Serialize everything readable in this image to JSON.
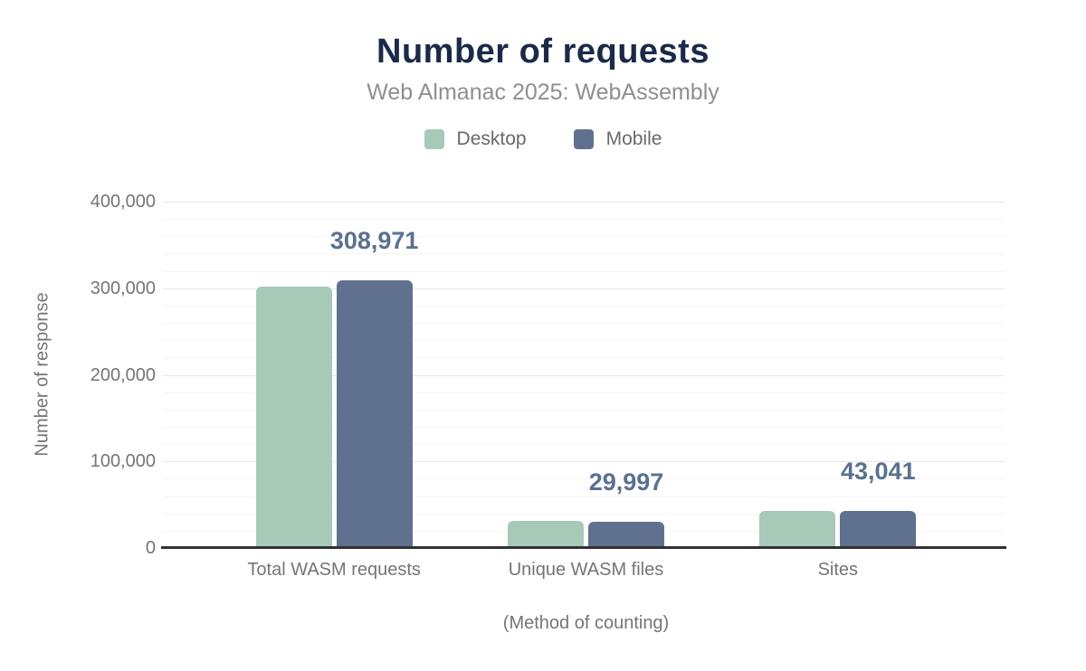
{
  "chart": {
    "title": "Number of requests",
    "subtitle": "Web Almanac 2025: WebAssembly"
  },
  "chart_data": {
    "type": "bar",
    "title": "Number of requests",
    "subtitle": "Web Almanac 2025: WebAssembly",
    "categories": [
      "Total WASM requests",
      "Unique WASM files",
      "Sites"
    ],
    "series": [
      {
        "name": "Desktop",
        "color": "#a7c9b8",
        "values": [
          302000,
          31000,
          43000
        ],
        "data_labels": [
          "",
          "",
          ""
        ]
      },
      {
        "name": "Mobile",
        "color": "#5f718e",
        "values": [
          308971,
          29997,
          43041
        ],
        "data_labels": [
          "308,971",
          "29,997",
          "43,041"
        ]
      }
    ],
    "xlabel": "(Method of counting)",
    "ylabel": "Number of response",
    "ylim": [
      0,
      400000
    ],
    "y_ticks": [
      0,
      100000,
      200000,
      300000,
      400000
    ],
    "y_tick_labels": [
      "0",
      "100,000",
      "200,000",
      "300,000",
      "400,000"
    ],
    "y_minor_step": 20000,
    "grid": "on",
    "legend_position": "top",
    "colors": {
      "title": "#1b2a48",
      "subtitle": "#8f8f8f",
      "axis_text": "#757575",
      "data_label": "#5a7190",
      "axis_line": "#323232",
      "grid_major": "#e7e7e7",
      "grid_minor": "#f5f5f5"
    }
  }
}
